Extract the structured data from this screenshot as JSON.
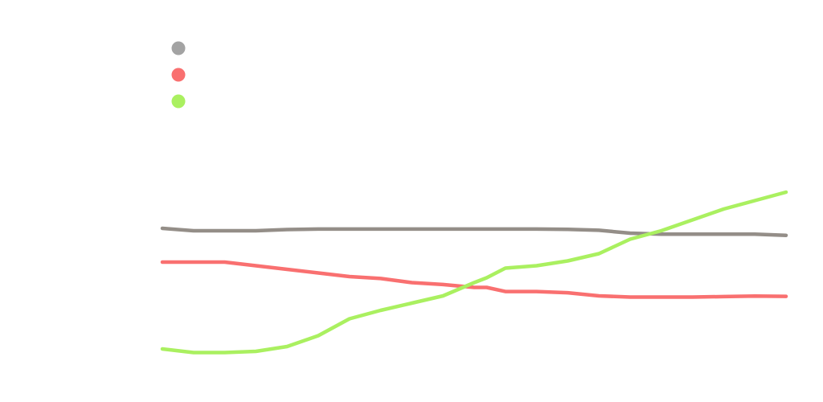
{
  "chart_data": {
    "type": "line",
    "title": "",
    "xlabel": "",
    "ylabel": "",
    "grid": false,
    "legend": "top-left",
    "x": [
      0,
      5,
      10,
      15,
      20,
      25,
      30,
      35,
      40,
      45,
      50,
      52,
      55,
      60,
      65,
      70,
      75,
      80,
      85,
      90,
      95,
      100
    ],
    "ylim": [
      0,
      100
    ],
    "series": [
      {
        "color": "#a3a3a3",
        "line_color": "#948e88",
        "values": [
          62,
          61,
          61,
          61,
          61.5,
          61.7,
          61.7,
          61.7,
          61.7,
          61.7,
          61.7,
          61.7,
          61.7,
          61.7,
          61.6,
          61.2,
          60,
          59.6,
          59.6,
          59.6,
          59.6,
          59.1
        ]
      },
      {
        "color": "#f97070",
        "line_color": "#f97070",
        "values": [
          48,
          48,
          48,
          46.5,
          45,
          43.5,
          42,
          41.2,
          39.5,
          38.7,
          37.5,
          37.5,
          35.8,
          35.8,
          35.3,
          34,
          33.5,
          33.5,
          33.5,
          33.7,
          33.9,
          33.8
        ]
      },
      {
        "color": "#aaf060",
        "line_color": "#aaf060",
        "values": [
          12,
          10.5,
          10.5,
          11,
          13,
          17.5,
          24.5,
          28,
          31,
          34,
          39.5,
          41.5,
          45.5,
          46.5,
          48.5,
          51.5,
          57.5,
          61,
          65.5,
          70,
          73.5,
          77
        ]
      }
    ]
  }
}
